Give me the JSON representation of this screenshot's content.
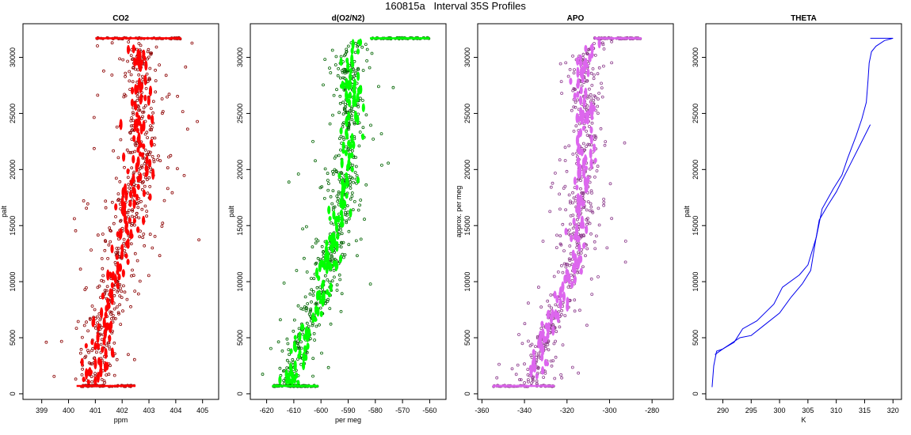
{
  "figure": {
    "title": "160815a   Interval 35S Profiles"
  },
  "chart_data": [
    {
      "type": "scatter",
      "title": "CO2",
      "xlabel": "ppm",
      "ylabel": "palt",
      "xlim": [
        398.3,
        405.6
      ],
      "ylim": [
        -500,
        33000
      ],
      "xticks": [
        399,
        400,
        401,
        402,
        403,
        404,
        405
      ],
      "yticks": [
        0,
        5000,
        10000,
        15000,
        20000,
        25000,
        30000
      ],
      "grid": false,
      "series": [
        {
          "color": "#ff0000",
          "edge": "#8b0000",
          "trend": [
            [
              401.0,
              700
            ],
            [
              401.2,
              5000
            ],
            [
              401.7,
              10000
            ],
            [
              402.2,
              15000
            ],
            [
              402.7,
              20000
            ],
            [
              402.7,
              25000
            ],
            [
              402.6,
              30000
            ],
            [
              402.4,
              31700
            ]
          ],
          "spread": 0.7,
          "outlier_spread": 1.9,
          "shelves": [
            {
              "y": 700,
              "x": [
                400.3,
                402.5
              ]
            },
            {
              "y": 31700,
              "x": [
                401.0,
                404.2
              ]
            }
          ]
        }
      ]
    },
    {
      "type": "scatter",
      "title": "d(O2/N2)",
      "xlabel": "per meg",
      "ylabel": "palt",
      "xlim": [
        -626,
        -554
      ],
      "ylim": [
        -500,
        33000
      ],
      "xticks": [
        -620,
        -610,
        -600,
        -590,
        -580,
        -570,
        -560
      ],
      "yticks": [
        0,
        5000,
        10000,
        15000,
        20000,
        25000,
        30000
      ],
      "grid": false,
      "series": [
        {
          "color": "#00ff00",
          "edge": "#006400",
          "trend": [
            [
              -612,
              700
            ],
            [
              -607,
              5000
            ],
            [
              -598,
              10000
            ],
            [
              -594,
              15000
            ],
            [
              -590,
              20000
            ],
            [
              -588,
              25000
            ],
            [
              -590,
              30000
            ],
            [
              -585,
              31700
            ]
          ],
          "spread": 5,
          "outlier_spread": 14,
          "shelves": [
            {
              "y": 700,
              "x": [
                -618,
                -601
              ]
            },
            {
              "y": 31700,
              "x": [
                -582,
                -560
              ]
            }
          ]
        }
      ]
    },
    {
      "type": "scatter",
      "title": "APO",
      "xlabel": "",
      "ylabel": "approx. per meg",
      "xlim": [
        -362,
        -270
      ],
      "ylim": [
        -500,
        33000
      ],
      "xticks": [
        -360,
        -340,
        -320,
        -300,
        -280
      ],
      "yticks": [
        0,
        5000,
        10000,
        15000,
        20000,
        25000,
        30000
      ],
      "grid": false,
      "series": [
        {
          "color": "#dd66ee",
          "edge": "#8b3a8b",
          "trend": [
            [
              -338,
              700
            ],
            [
              -330,
              5000
            ],
            [
              -318,
              10000
            ],
            [
              -314,
              15000
            ],
            [
              -312,
              20000
            ],
            [
              -311,
              25000
            ],
            [
              -312,
              30000
            ],
            [
              -300,
              31700
            ]
          ],
          "spread": 6,
          "outlier_spread": 18,
          "shelves": [
            {
              "y": 700,
              "x": [
                -355,
                -326
              ]
            },
            {
              "y": 31700,
              "x": [
                -307,
                -285
              ]
            }
          ]
        }
      ]
    },
    {
      "type": "line",
      "title": "THETA",
      "xlabel": "K",
      "ylabel": "palt",
      "xlim": [
        287,
        321.5
      ],
      "ylim": [
        -500,
        33000
      ],
      "xticks": [
        290,
        295,
        300,
        305,
        310,
        315,
        320
      ],
      "yticks": [
        0,
        5000,
        10000,
        15000,
        20000,
        25000,
        30000
      ],
      "grid": false,
      "series": [
        {
          "color": "#0000ee",
          "points": [
            [
              288.1,
              600
            ],
            [
              288.4,
              2500
            ],
            [
              288.9,
              3800
            ],
            [
              290.0,
              4000
            ],
            [
              292.0,
              4600
            ],
            [
              293.5,
              5800
            ],
            [
              296.0,
              6500
            ],
            [
              299.0,
              8000
            ],
            [
              300.5,
              9500
            ],
            [
              303.5,
              10600
            ],
            [
              305.0,
              11500
            ],
            [
              306.5,
              14000
            ],
            [
              307.5,
              16500
            ],
            [
              309.5,
              18300
            ],
            [
              311.0,
              19500
            ],
            [
              312.0,
              21000
            ],
            [
              313.5,
              23000
            ],
            [
              314.5,
              24500
            ],
            [
              315.3,
              26000
            ],
            [
              315.6,
              28000
            ],
            [
              315.8,
              29500
            ],
            [
              316.2,
              30500
            ],
            [
              317.0,
              31000
            ],
            [
              318.5,
              31500
            ],
            [
              320.0,
              31700
            ],
            [
              316.0,
              31700
            ]
          ]
        },
        {
          "color": "#0000ee",
          "points": [
            [
              288.6,
              3500
            ],
            [
              290.0,
              4000
            ],
            [
              293.0,
              5000
            ],
            [
              295.0,
              5200
            ],
            [
              297.0,
              6000
            ],
            [
              300.0,
              7200
            ],
            [
              302.0,
              8600
            ],
            [
              304.0,
              9800
            ],
            [
              305.5,
              11000
            ],
            [
              306.3,
              13500
            ],
            [
              307.0,
              15500
            ],
            [
              308.5,
              16800
            ],
            [
              310.0,
              18000
            ],
            [
              311.5,
              19500
            ],
            [
              312.5,
              20500
            ],
            [
              314.0,
              22000
            ],
            [
              316.0,
              24000
            ]
          ]
        }
      ]
    }
  ]
}
